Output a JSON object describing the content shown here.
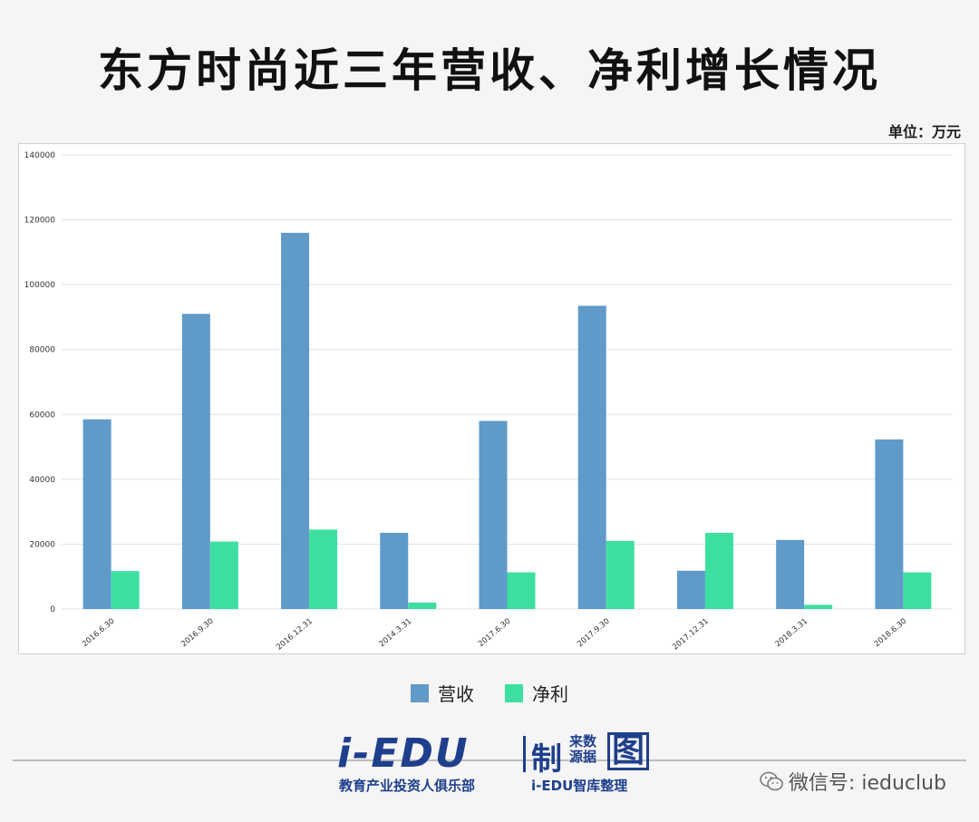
{
  "title": "东方时尚近三年营收、净利增长情况",
  "unit_label": "单位：万元",
  "chart_data": {
    "type": "bar",
    "categories": [
      "2016.6.30",
      "2016.9.30",
      "2016.12.31",
      "2014.3.31",
      "2017.6.30",
      "2017.9.30",
      "2017.12.31",
      "2018.3.31",
      "2018.6.30"
    ],
    "series": [
      {
        "name": "营收",
        "color": "#5f9ac9",
        "values": [
          58500,
          91000,
          116000,
          23500,
          58000,
          93500,
          11800,
          21300,
          52300
        ]
      },
      {
        "name": "净利",
        "color": "#3ddfa0",
        "values": [
          11700,
          20800,
          24500,
          2000,
          11300,
          21000,
          23500,
          1300,
          11300
        ]
      }
    ],
    "yticks": [
      0,
      20000,
      40000,
      60000,
      80000,
      100000,
      120000,
      140000
    ],
    "ylim": [
      0,
      140000
    ],
    "grid": true,
    "legend_position": "bottom"
  },
  "logo": {
    "main": "i-EDU",
    "make": "制",
    "src_line1": "来数",
    "src_line2": "源据",
    "tu": "图",
    "sub1": "教育产业投资人俱乐部",
    "sub2": "i-EDU智库整理"
  },
  "wechat": {
    "label": "微信号: ieduclub",
    "icon": "wechat-icon"
  }
}
